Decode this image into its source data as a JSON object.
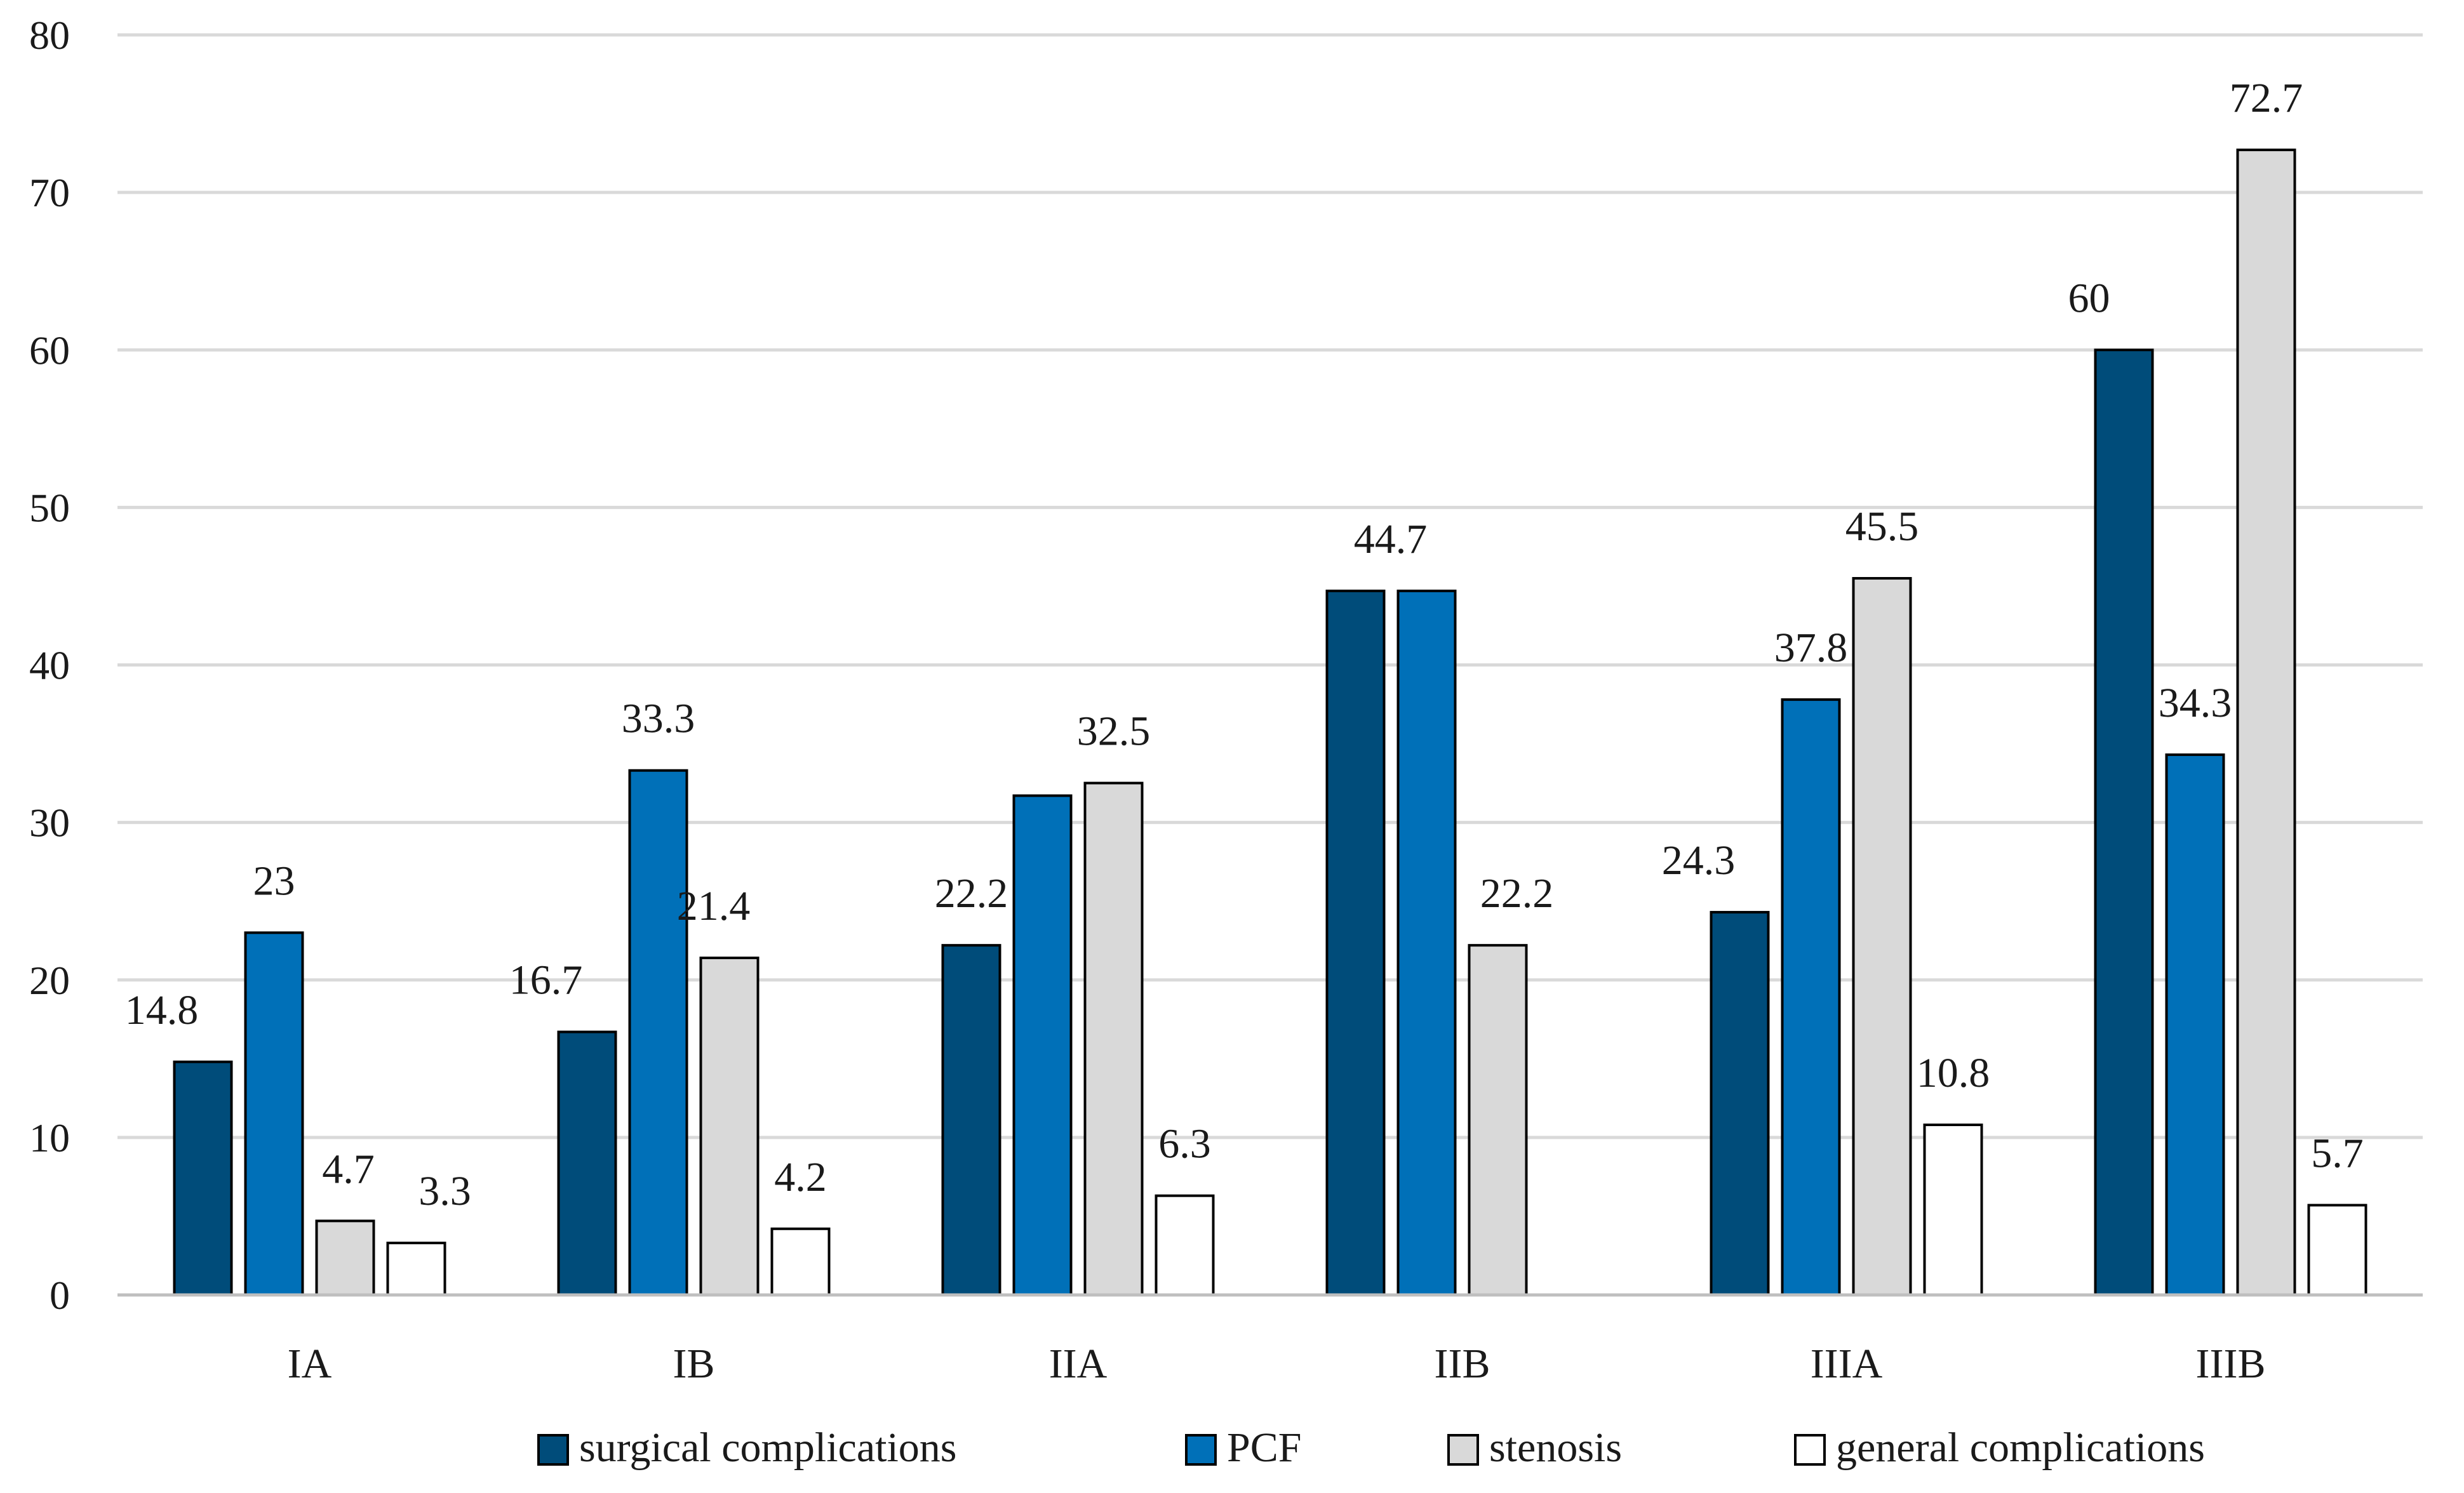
{
  "chart_data": {
    "type": "bar",
    "title": "",
    "xlabel": "",
    "ylabel": "",
    "ylim": [
      0,
      80
    ],
    "yticks": [
      0,
      10,
      20,
      30,
      40,
      50,
      60,
      70,
      80
    ],
    "grid": true,
    "legend_position": "bottom",
    "categories": [
      "IA",
      "IB",
      "IIA",
      "IIB",
      "IIIA",
      "IIIB"
    ],
    "series": [
      {
        "name": "surgical complications",
        "color": "#004c7a",
        "values": [
          14.8,
          16.7,
          22.2,
          44.7,
          24.3,
          60
        ],
        "labels": [
          "14.8",
          "16.7",
          "22.2",
          "44.7",
          "24.3",
          "60"
        ]
      },
      {
        "name": "PCF",
        "color": "#0070b8",
        "values": [
          23,
          33.3,
          31.7,
          44.7,
          37.8,
          34.3
        ],
        "labels": [
          "23",
          "33.3",
          "",
          "",
          "37.8",
          "34.3"
        ]
      },
      {
        "name": "stenosis",
        "color": "#d9d9d9",
        "values": [
          4.7,
          21.4,
          32.5,
          22.2,
          45.5,
          72.7
        ],
        "labels": [
          "4.7",
          "21.4",
          "32.5",
          "22.2",
          "45.5",
          "72.7"
        ]
      },
      {
        "name": "general complications",
        "color": "#ffffff",
        "values": [
          3.3,
          4.2,
          6.3,
          0,
          10.8,
          5.7
        ],
        "labels": [
          "3.3",
          "4.2",
          "6.3",
          "",
          "10.8",
          "5.7"
        ]
      }
    ]
  }
}
